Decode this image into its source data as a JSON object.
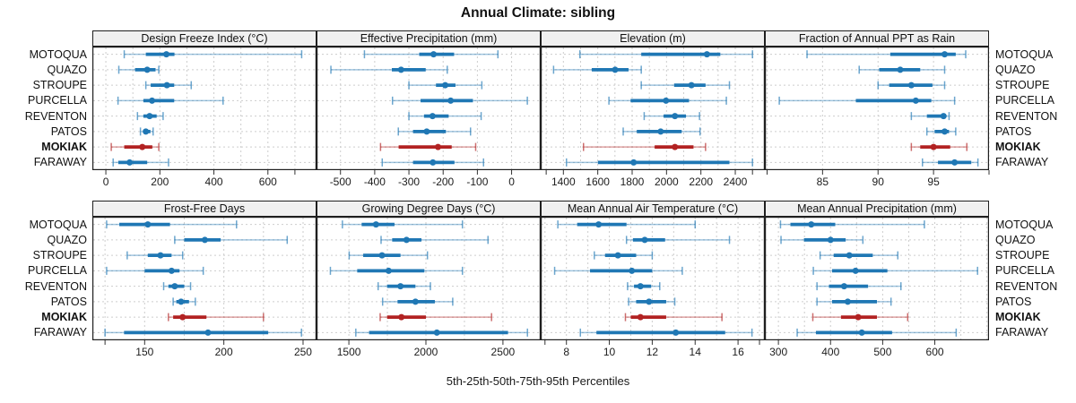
{
  "header": {
    "title": "Annual Climate: sibling"
  },
  "footer": {
    "caption": "5th-25th-50th-75th-95th Percentiles"
  },
  "colors": {
    "series_blue": "#1f77b4",
    "highlight_red": "#b22222",
    "grid": "#cdcdcd",
    "strip_bg": "#f0f0f0",
    "border": "#1f1f1f",
    "text": "#1a1a1a"
  },
  "chart_data": {
    "type": "scatter",
    "subtype": "trellis-percentile-dotplot",
    "title": "Annual Climate: sibling",
    "caption": "5th-25th-50th-75th-95th Percentiles",
    "legend_position": "none",
    "grid": "dashed-both-axes",
    "percentile_levels": [
      5,
      25,
      50,
      75,
      95
    ],
    "categories": [
      "MOTOQUA",
      "QUAZO",
      "STROUPE",
      "PURCELLA",
      "REVENTON",
      "PATOS",
      "MOKIAK",
      "FARAWAY"
    ],
    "highlight": "MOKIAK",
    "panels": [
      {
        "title": "Design Freeze Index (°C)",
        "row": 0,
        "col": 0,
        "xlim": [
          -50,
          780
        ],
        "tick_values": [
          0,
          200,
          400,
          600
        ],
        "tick_labels": [
          "0",
          "200",
          "400",
          "600"
        ],
        "extra_ticks": [
          700
        ],
        "gridlines": [
          0,
          100,
          200,
          300,
          400,
          500,
          600,
          700
        ],
        "series": [
          {
            "name": "MOTOQUA",
            "percentiles": [
              68,
              148,
              224,
              254,
              725
            ]
          },
          {
            "name": "QUAZO",
            "percentiles": [
              48,
              108,
              153,
              184,
              196
            ]
          },
          {
            "name": "STROUPE",
            "percentiles": [
              148,
              166,
              226,
              253,
              316
            ]
          },
          {
            "name": "PURCELLA",
            "percentiles": [
              45,
              139,
              171,
              253,
              434
            ]
          },
          {
            "name": "REVENTON",
            "percentiles": [
              117,
              139,
              162,
              188,
              212
            ]
          },
          {
            "name": "PATOS",
            "percentiles": [
              128,
              140,
              148,
              165,
              175
            ]
          },
          {
            "name": "MOKIAK",
            "percentiles": [
              20,
              68,
              135,
              172,
              196
            ]
          },
          {
            "name": "FARAWAY",
            "percentiles": [
              27,
              46,
              88,
              153,
              232
            ]
          }
        ]
      },
      {
        "title": "Effective Precipitation (mm)",
        "row": 0,
        "col": 1,
        "xlim": [
          -570,
          85
        ],
        "tick_values": [
          -500,
          -400,
          -300,
          -200,
          -100,
          0
        ],
        "tick_labels": [
          "-500",
          "-400",
          "-300",
          "-200",
          "-100",
          "0"
        ],
        "extra_ticks": [],
        "gridlines": [
          -500,
          -400,
          -300,
          -200,
          -100,
          0
        ],
        "series": [
          {
            "name": "MOTOQUA",
            "percentiles": [
              -430,
              -270,
              -228,
              -168,
              -40
            ]
          },
          {
            "name": "QUAZO",
            "percentiles": [
              -528,
              -350,
              -323,
              -251,
              -188
            ]
          },
          {
            "name": "STROUPE",
            "percentiles": [
              -300,
              -221,
              -194,
              -164,
              -87
            ]
          },
          {
            "name": "PURCELLA",
            "percentiles": [
              -348,
              -266,
              -178,
              -113,
              46
            ]
          },
          {
            "name": "REVENTON",
            "percentiles": [
              -300,
              -256,
              -231,
              -184,
              -89
            ]
          },
          {
            "name": "PATOS",
            "percentiles": [
              -331,
              -288,
              -248,
              -192,
              -120
            ]
          },
          {
            "name": "MOKIAK",
            "percentiles": [
              -383,
              -330,
              -215,
              -175,
              -105
            ]
          },
          {
            "name": "FARAWAY",
            "percentiles": [
              -378,
              -288,
              -230,
              -167,
              -82
            ]
          }
        ]
      },
      {
        "title": "Elevation (m)",
        "row": 0,
        "col": 2,
        "xlim": [
          1268,
          2572
        ],
        "tick_values": [
          1400,
          1600,
          1800,
          2000,
          2200,
          2400
        ],
        "tick_labels": [
          "1400",
          "1600",
          "1800",
          "2000",
          "2200",
          "2400"
        ],
        "extra_ticks": [
          1300,
          2500
        ],
        "gridlines": [
          1300,
          1400,
          1500,
          1600,
          1700,
          1800,
          1900,
          2000,
          2100,
          2200,
          2300,
          2400,
          2500
        ],
        "series": [
          {
            "name": "MOTOQUA",
            "percentiles": [
              1496,
              1853,
              2235,
              2313,
              2500
            ]
          },
          {
            "name": "QUAZO",
            "percentiles": [
              1343,
              1565,
              1701,
              1779,
              1853
            ]
          },
          {
            "name": "STROUPE",
            "percentiles": [
              1853,
              2044,
              2145,
              2227,
              2366
            ]
          },
          {
            "name": "PURCELLA",
            "percentiles": [
              1665,
              1791,
              1997,
              2131,
              2348
            ]
          },
          {
            "name": "REVENTON",
            "percentiles": [
              1870,
              1983,
              2049,
              2113,
              2192
            ]
          },
          {
            "name": "PATOS",
            "percentiles": [
              1748,
              1827,
              1966,
              2088,
              2195
            ]
          },
          {
            "name": "MOKIAK",
            "percentiles": [
              1517,
              1931,
              2049,
              2157,
              2227
            ]
          },
          {
            "name": "FARAWAY",
            "percentiles": [
              1418,
              1601,
              1809,
              2366,
              2500
            ]
          }
        ]
      },
      {
        "title": "Fraction of Annual PPT as Rain",
        "row": 0,
        "col": 3,
        "xlim": [
          79.8,
          100
        ],
        "tick_values": [
          85,
          90,
          95
        ],
        "tick_labels": [
          "85",
          "90",
          "95"
        ],
        "extra_ticks": [
          80,
          100
        ],
        "gridlines": [
          80,
          85,
          90,
          95,
          100
        ],
        "series": [
          {
            "name": "MOTOQUA",
            "percentiles": [
              83.6,
              91.1,
              96.0,
              97.0,
              97.9
            ]
          },
          {
            "name": "QUAZO",
            "percentiles": [
              88.3,
              90.1,
              92.0,
              93.8,
              96.0
            ]
          },
          {
            "name": "STROUPE",
            "percentiles": [
              90.0,
              91.0,
              93.0,
              94.9,
              96.0
            ]
          },
          {
            "name": "PURCELLA",
            "percentiles": [
              81.1,
              88.0,
              93.4,
              94.8,
              96.9
            ]
          },
          {
            "name": "REVENTON",
            "percentiles": [
              93.0,
              94.4,
              95.9,
              96.1,
              96.4
            ]
          },
          {
            "name": "PATOS",
            "percentiles": [
              94.4,
              95.1,
              96.0,
              96.4,
              97.0
            ]
          },
          {
            "name": "MOKIAK",
            "percentiles": [
              93.0,
              93.8,
              95.0,
              96.5,
              98.0
            ]
          },
          {
            "name": "FARAWAY",
            "percentiles": [
              94.0,
              95.4,
              96.9,
              98.4,
              99.0
            ]
          }
        ]
      },
      {
        "title": "Frost-Free Days",
        "row": 1,
        "col": 0,
        "xlim": [
          117,
          258.5
        ],
        "tick_values": [
          150,
          200,
          250
        ],
        "tick_labels": [
          "150",
          "200",
          "250"
        ],
        "extra_ticks": [
          125
        ],
        "gridlines": [
          125,
          150,
          175,
          200,
          225,
          250
        ],
        "series": [
          {
            "name": "MOTOQUA",
            "percentiles": [
              126,
              134,
              152,
              166,
              208
            ]
          },
          {
            "name": "QUAZO",
            "percentiles": [
              169,
              175,
              188,
              198,
              240
            ]
          },
          {
            "name": "STROUPE",
            "percentiles": [
              139,
              152,
              160,
              167,
              174
            ]
          },
          {
            "name": "PURCELLA",
            "percentiles": [
              126,
              150,
              167,
              172,
              187
            ]
          },
          {
            "name": "REVENTON",
            "percentiles": [
              162,
              165,
              169,
              175,
              179
            ]
          },
          {
            "name": "PATOS",
            "percentiles": [
              168,
              170,
              173,
              178,
              182
            ]
          },
          {
            "name": "MOKIAK",
            "percentiles": [
              165,
              168,
              174,
              189,
              225
            ]
          },
          {
            "name": "FARAWAY",
            "percentiles": [
              125,
              137,
              190,
              228,
              249
            ]
          }
        ]
      },
      {
        "title": "Growing Degree Days (°C)",
        "row": 1,
        "col": 1,
        "xlim": [
          1290,
          2745
        ],
        "tick_values": [
          1500,
          2000,
          2500
        ],
        "tick_labels": [
          "1500",
          "2000",
          "2500"
        ],
        "extra_ticks": [],
        "gridlines": [
          1500,
          1750,
          2000,
          2250,
          2500
        ],
        "series": [
          {
            "name": "MOTOQUA",
            "percentiles": [
              1458,
              1583,
              1676,
              1796,
              2237
            ]
          },
          {
            "name": "QUAZO",
            "percentiles": [
              1709,
              1781,
              1874,
              1971,
              2403
            ]
          },
          {
            "name": "STROUPE",
            "percentiles": [
              1502,
              1593,
              1715,
              1835,
              2010
            ]
          },
          {
            "name": "PURCELLA",
            "percentiles": [
              1380,
              1554,
              1758,
              1990,
              2237
            ]
          },
          {
            "name": "REVENTON",
            "percentiles": [
              1690,
              1748,
              1835,
              1932,
              2029
            ]
          },
          {
            "name": "PATOS",
            "percentiles": [
              1719,
              1816,
              1932,
              2058,
              2174
            ]
          },
          {
            "name": "MOKIAK",
            "percentiles": [
              1703,
              1748,
              1841,
              2000,
              2426
            ]
          },
          {
            "name": "FARAWAY",
            "percentiles": [
              1545,
              1631,
              2071,
              2533,
              2659
            ]
          }
        ]
      },
      {
        "title": "Mean Annual Air Temperature (°C)",
        "row": 1,
        "col": 2,
        "xlim": [
          6.8,
          17.25
        ],
        "tick_values": [
          8,
          10,
          12,
          14,
          16
        ],
        "tick_labels": [
          "8",
          "10",
          "12",
          "14",
          "16"
        ],
        "extra_ticks": [
          7,
          17
        ],
        "gridlines": [
          7,
          8,
          9,
          10,
          11,
          12,
          13,
          14,
          15,
          16,
          17
        ],
        "series": [
          {
            "name": "MOTOQUA",
            "percentiles": [
              7.6,
              8.5,
              9.5,
              10.8,
              14.0
            ]
          },
          {
            "name": "QUAZO",
            "percentiles": [
              10.8,
              11.1,
              11.65,
              12.6,
              15.6
            ]
          },
          {
            "name": "STROUPE",
            "percentiles": [
              9.3,
              9.8,
              10.4,
              11.25,
              12.0
            ]
          },
          {
            "name": "PURCELLA",
            "percentiles": [
              7.45,
              9.1,
              11.05,
              12.0,
              13.4
            ]
          },
          {
            "name": "REVENTON",
            "percentiles": [
              10.85,
              11.15,
              11.45,
              11.95,
              12.35
            ]
          },
          {
            "name": "PATOS",
            "percentiles": [
              10.9,
              11.25,
              11.85,
              12.65,
              13.05
            ]
          },
          {
            "name": "MOKIAK",
            "percentiles": [
              10.75,
              11.0,
              11.45,
              12.65,
              15.25
            ]
          },
          {
            "name": "FARAWAY",
            "percentiles": [
              8.65,
              9.4,
              13.1,
              15.4,
              16.65
            ]
          }
        ]
      },
      {
        "title": "Mean Annual Precipitation (mm)",
        "row": 1,
        "col": 3,
        "xlim": [
          274,
          704
        ],
        "tick_values": [
          300,
          400,
          500,
          600
        ],
        "tick_labels": [
          "300",
          "400",
          "500",
          "600"
        ],
        "extra_ticks": [],
        "gridlines": [
          300,
          350,
          400,
          450,
          500,
          550,
          600,
          650,
          700
        ],
        "series": [
          {
            "name": "MOTOQUA",
            "percentiles": [
              304,
              323,
              363,
              409,
              580
            ]
          },
          {
            "name": "QUAZO",
            "percentiles": [
              305,
              349,
              400,
              429,
              462
            ]
          },
          {
            "name": "STROUPE",
            "percentiles": [
              380,
              406,
              436,
              481,
              529
            ]
          },
          {
            "name": "PURCELLA",
            "percentiles": [
              367,
              403,
              448,
              509,
              682
            ]
          },
          {
            "name": "REVENTON",
            "percentiles": [
              374,
              397,
              426,
              472,
              535
            ]
          },
          {
            "name": "PATOS",
            "percentiles": [
              374,
              403,
              433,
              489,
              516
            ]
          },
          {
            "name": "MOKIAK",
            "percentiles": [
              366,
              420,
              453,
              489,
              548
            ]
          },
          {
            "name": "FARAWAY",
            "percentiles": [
              336,
              372,
              460,
              518,
              641
            ]
          }
        ]
      }
    ]
  }
}
